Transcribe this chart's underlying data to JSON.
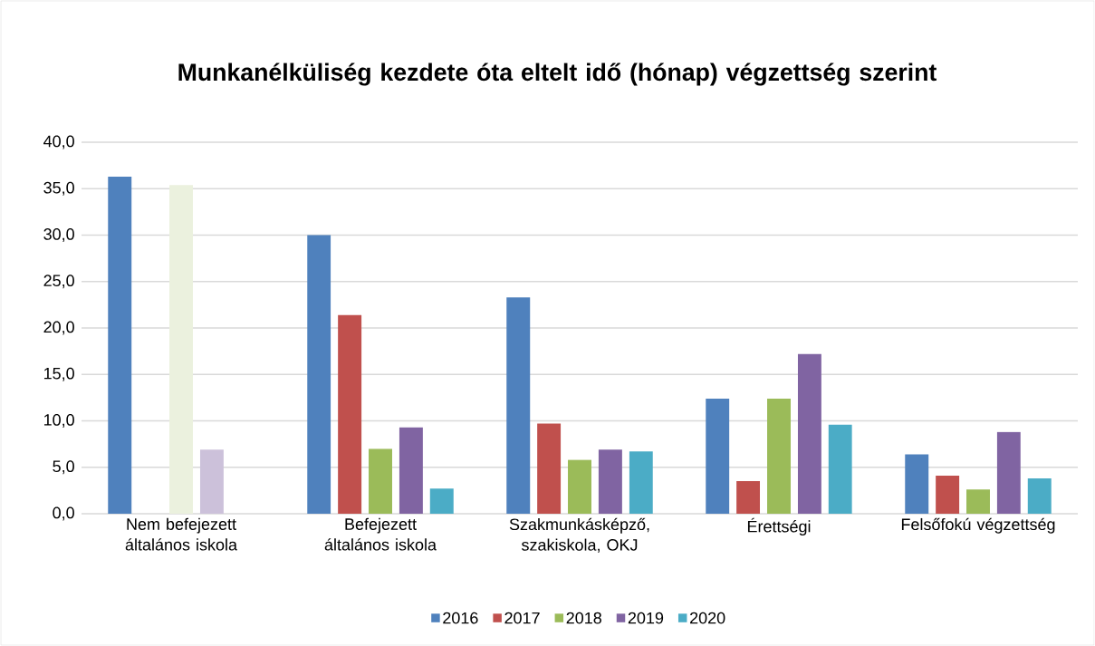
{
  "chart_data": {
    "type": "bar",
    "title": "Munkanélküliség kezdete óta eltelt idő (hónap) végzettség szerint",
    "categories": [
      "Nem befejezett általános iskola",
      "Befejezett általános iskola",
      "Szakmunkásképző, szakiskola, OKJ",
      "Érettségi",
      "Felsőfokú végzettség"
    ],
    "series": [
      {
        "name": "2016",
        "color": "#4f81bd",
        "values": [
          36.3,
          30.0,
          23.3,
          12.4,
          6.4
        ]
      },
      {
        "name": "2017",
        "color": "#c0504d",
        "values": [
          null,
          21.4,
          9.7,
          3.5,
          4.1
        ]
      },
      {
        "name": "2018",
        "color": "#9bbb59",
        "colors": [
          "#ebf1de",
          "#9bbb59",
          "#9bbb59",
          "#9bbb59",
          "#9bbb59"
        ],
        "values": [
          35.4,
          7.0,
          5.8,
          12.4,
          2.6
        ]
      },
      {
        "name": "2019",
        "color": "#8064a2",
        "colors": [
          "#ccc1da",
          "#8064a2",
          "#8064a2",
          "#8064a2",
          "#8064a2"
        ],
        "values": [
          6.9,
          9.3,
          6.9,
          17.2,
          8.8
        ]
      },
      {
        "name": "2020",
        "color": "#4bacc6",
        "values": [
          null,
          2.7,
          6.7,
          9.6,
          3.8
        ]
      }
    ],
    "ylim": [
      0,
      40
    ],
    "yticks": [
      {
        "value": 0,
        "label": "0,0"
      },
      {
        "value": 5,
        "label": "5,0"
      },
      {
        "value": 10,
        "label": "10,0"
      },
      {
        "value": 15,
        "label": "15,0"
      },
      {
        "value": 20,
        "label": "20,0"
      },
      {
        "value": 25,
        "label": "25,0"
      },
      {
        "value": 30,
        "label": "30,0"
      },
      {
        "value": 35,
        "label": "35,0"
      },
      {
        "value": 40,
        "label": "40,0"
      }
    ],
    "grid": "y",
    "legend": "bottom"
  }
}
